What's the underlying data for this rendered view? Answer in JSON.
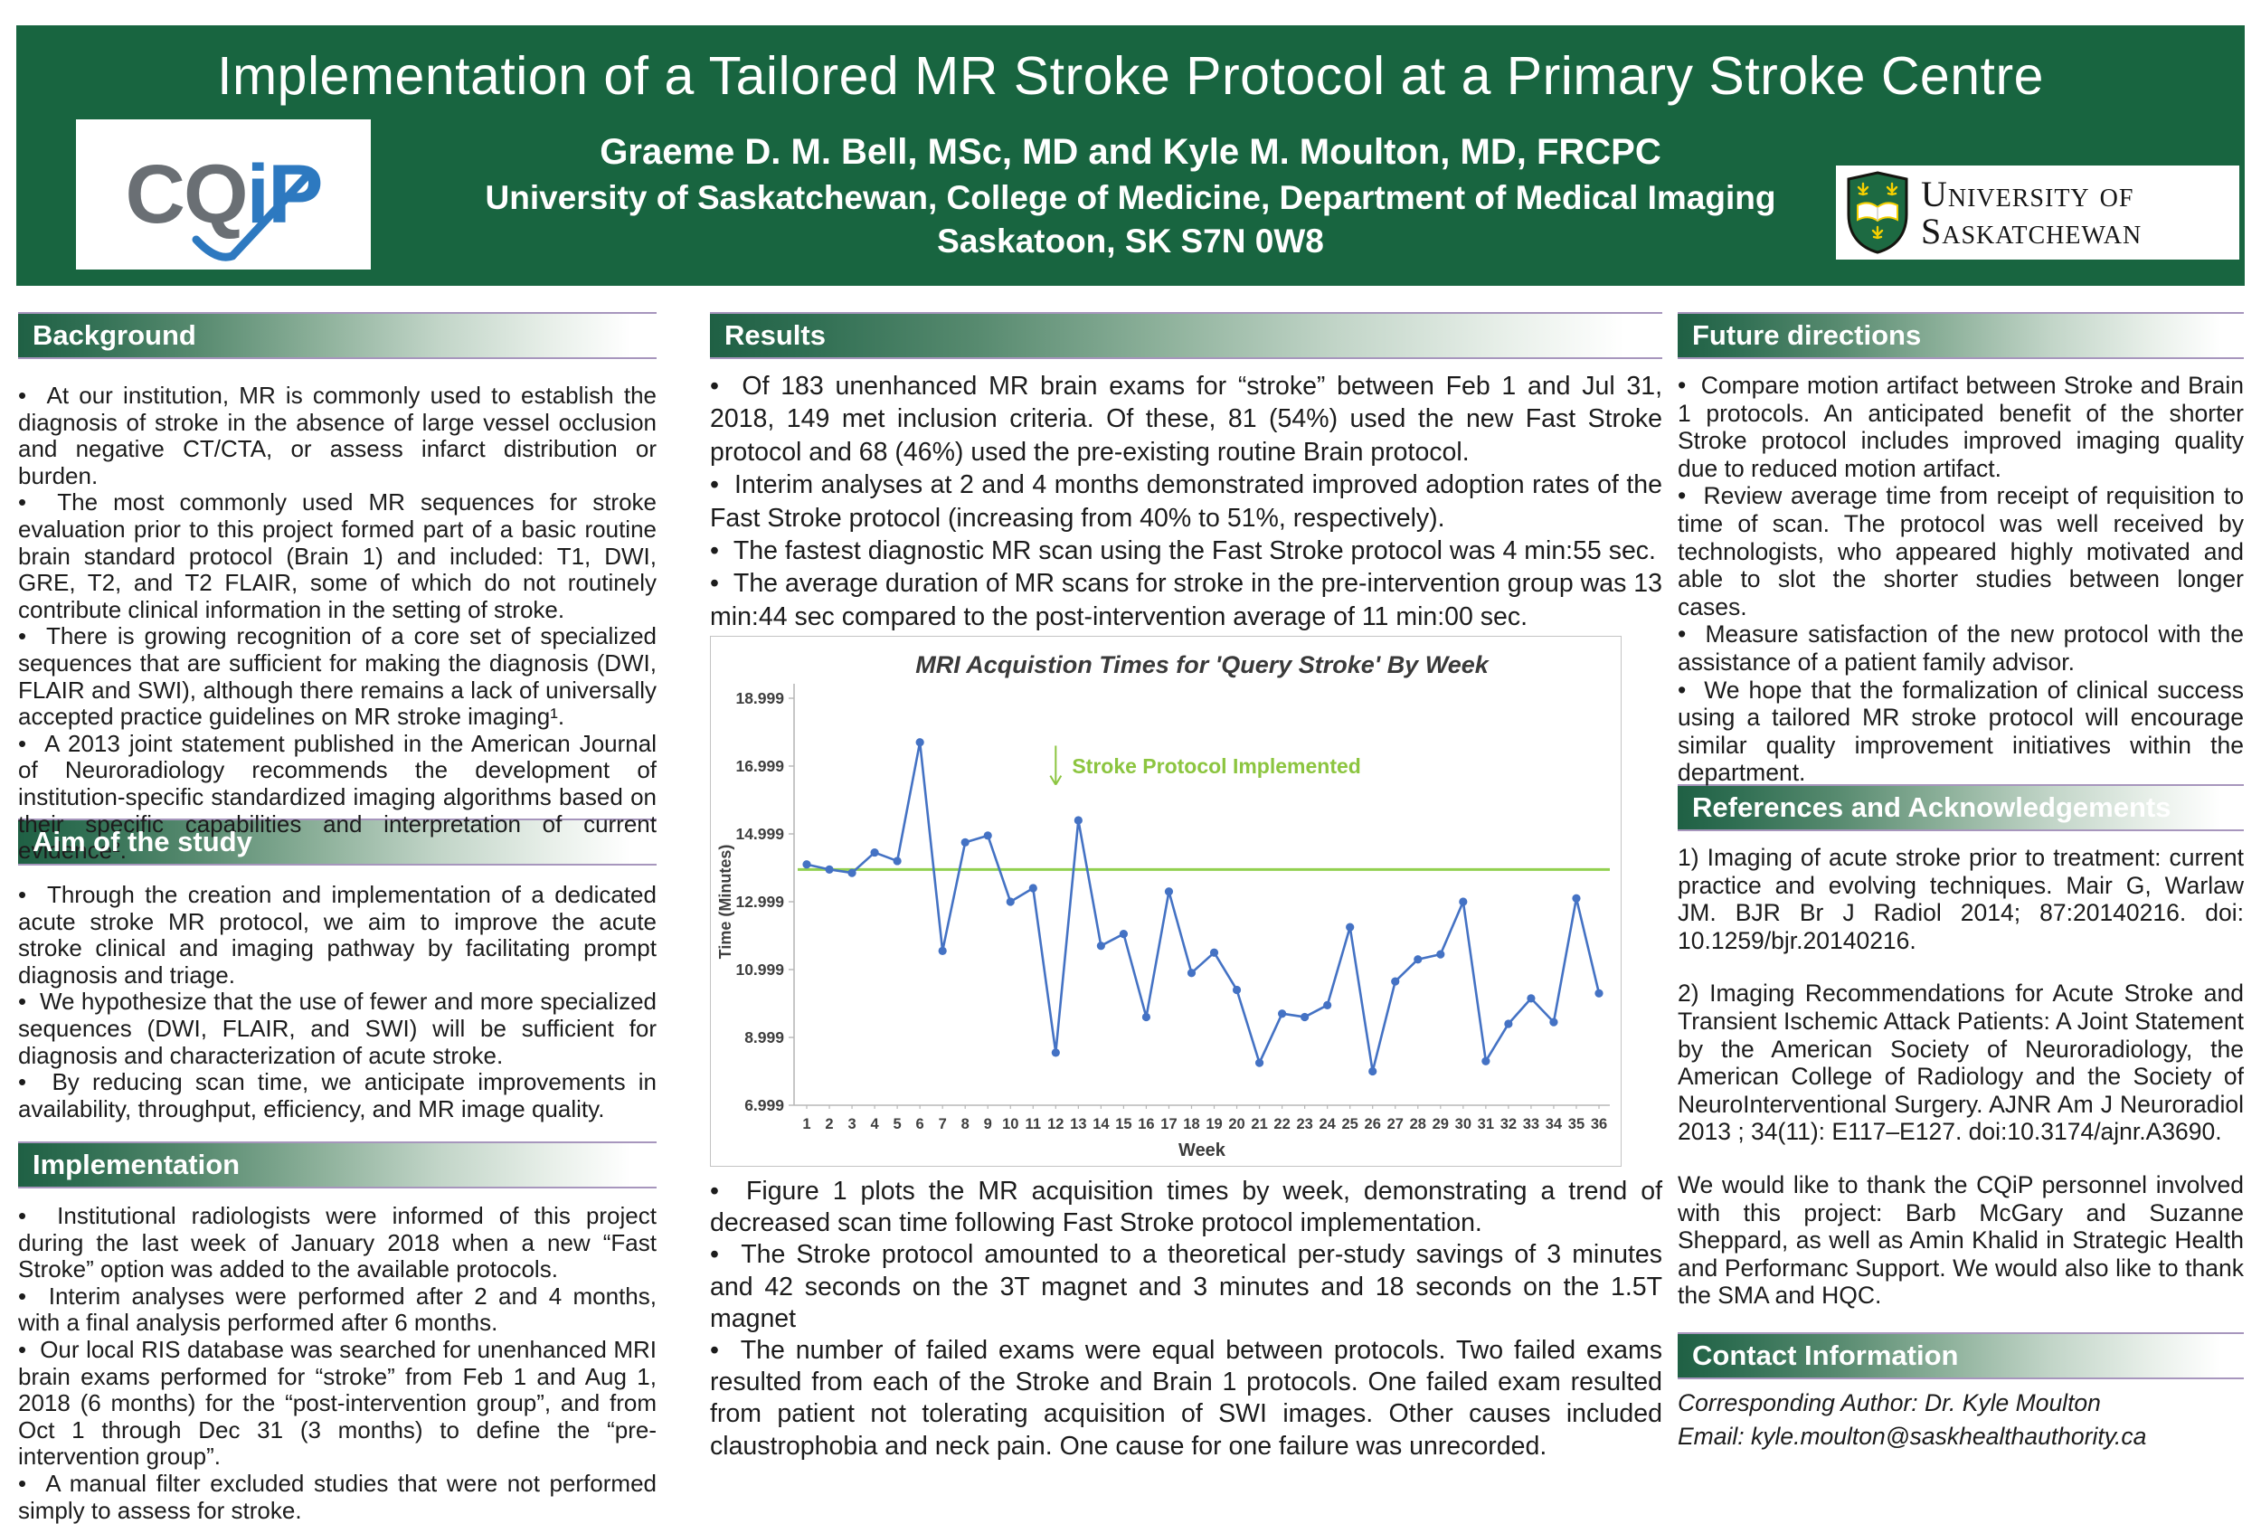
{
  "header": {
    "title": "Implementation of a Tailored MR Stroke Protocol at a Primary Stroke Centre",
    "authors": "Graeme D. M. Bell, MSc, MD and Kyle M. Moulton, MD, FRCPC",
    "affiliation": "University of Saskatchewan, College of Medicine, Department of Medical Imaging",
    "city": "Saskatoon, SK S7N 0W8",
    "cqip": {
      "gray": "CQ",
      "blue": "iP"
    },
    "uofs": {
      "line1": "University of",
      "line2": "Saskatchewan"
    }
  },
  "colors": {
    "header_green": "#186540",
    "bar_purple": "#a796bd",
    "chart_blue": "#4472c4",
    "chart_green": "#92d050",
    "annotation_green": "#8cc540"
  },
  "sections": {
    "background": {
      "title": "Background",
      "bullets": [
        "At our institution, MR is commonly used to establish the diagnosis of stroke in the absence of large vessel occlusion and negative CT/CTA, or assess infarct distribution or burden.",
        "The most commonly used MR sequences for stroke evaluation prior to this project formed part of a basic routine brain standard protocol (Brain 1) and included: T1, DWI, GRE, T2, and T2 FLAIR, some of which do not routinely contribute clinical information in the setting of stroke.",
        "There is growing recognition of a core set of specialized sequences that are sufficient for making the diagnosis (DWI, FLAIR and SWI), although there remains a lack of universally accepted practice guidelines on MR stroke imaging¹.",
        "A 2013 joint statement published in the American Journal of Neuroradiology recommends the development of institution-specific standardized imaging algorithms based on their specific capabilities and interpretation of current evidence²."
      ]
    },
    "aim": {
      "title": "Aim of the study",
      "bullets": [
        "Through the creation and implementation of a dedicated acute stroke MR protocol, we aim to improve the acute stroke clinical and imaging pathway by facilitating prompt diagnosis and triage.",
        "We hypothesize that the use of fewer and more specialized sequences (DWI, FLAIR, and SWI) will be sufficient for diagnosis and characterization of acute stroke.",
        "By reducing scan time, we anticipate improvements in availability, throughput, efficiency, and MR image quality."
      ]
    },
    "implementation": {
      "title": "Implementation",
      "bullets": [
        "Institutional radiologists were informed of this project during the last week of January 2018 when a new “Fast Stroke” option was added to the available protocols.",
        "Interim analyses were performed after 2 and 4 months, with a final analysis performed after 6 months.",
        "Our local RIS database was searched for unenhanced MRI brain exams performed for “stroke” from Feb 1 and Aug 1, 2018 (6 months) for the “post-intervention group”, and from Oct 1 through Dec 31 (3 months) to define the “pre-intervention group”.",
        "A manual filter excluded studies that were not performed simply to assess for stroke."
      ]
    },
    "results": {
      "title": "Results",
      "bullets_top": [
        "Of 183 unenhanced MR brain exams for “stroke” between Feb 1 and Jul 31, 2018, 149 met inclusion criteria. Of these, 81 (54%) used the new Fast Stroke protocol and 68 (46%) used the pre-existing routine Brain protocol.",
        "Interim analyses at 2 and 4 months demonstrated improved adoption rates of the Fast Stroke protocol (increasing from 40% to 51%, respectively).",
        "The fastest diagnostic MR scan using the Fast Stroke protocol was 4 min:55 sec.",
        "The average duration of MR scans for stroke in the pre-intervention group was 13 min:44 sec compared to the post-intervention average of 11 min:00 sec."
      ],
      "bullets_bottom": [
        "Figure 1 plots the MR acquisition times by week, demonstrating a trend of decreased scan time following Fast Stroke protocol implementation.",
        "The Stroke protocol amounted to a theoretical per-study savings of 3 minutes and 42 seconds on the 3T magnet and 3 minutes and 18 seconds on the 1.5T magnet",
        "The number of failed exams were equal between protocols.  Two failed exams resulted from each of the Stroke and Brain 1 protocols.  One failed exam resulted from patient not tolerating acquisition of SWI images.  Other causes included claustrophobia and neck pain.  One cause for one failure was unrecorded."
      ]
    },
    "future": {
      "title": "Future directions",
      "bullets": [
        "Compare motion artifact between Stroke and Brain 1 protocols.  An anticipated benefit of the shorter Stroke protocol includes improved imaging quality due to reduced motion artifact.",
        "Review average time from receipt of requisition to time of scan.  The protocol was well received by technologists, who appeared highly motivated and able to slot the shorter studies between longer cases.",
        "Measure satisfaction of the new protocol with the assistance of a patient family advisor.",
        "We hope that the formalization of clinical success using a tailored MR stroke protocol will encourage similar quality improvement initiatives within the department."
      ]
    },
    "references": {
      "title": "References and Acknowledgements",
      "items": [
        "1)  Imaging of acute stroke prior to treatment: current practice and evolving techniques.  Mair G, Warlaw JM. BJR Br J Radiol 2014; 87:20140216. doi: 10.1259/bjr.20140216.",
        "2)  Imaging Recommendations for Acute Stroke and Transient Ischemic Attack Patients: A Joint Statement by the American Society of Neuroradiology, the American College of Radiology and the Society of NeuroInterventional Surgery.  AJNR Am J Neuroradiol 2013 ; 34(11): E117–E127. doi:10.3174/ajnr.A3690.",
        "We would like to thank the CQiP personnel involved with this project: Barb McGary and Suzanne Sheppard, as well as Amin Khalid in Strategic Health and Performanc Support.  We would also like to thank the SMA and HQC."
      ]
    },
    "contact": {
      "title": "Contact Information",
      "lines": [
        "Corresponding Author: Dr. Kyle Moulton",
        "Email: kyle.moulton@saskhealthauthority.ca"
      ]
    }
  },
  "chart_data": {
    "type": "line",
    "title": "MRI Acquistion Times for 'Query Stroke' By Week",
    "xlabel": "Week",
    "ylabel": "Time (Minutes)",
    "x": [
      1,
      2,
      3,
      4,
      5,
      6,
      7,
      8,
      9,
      10,
      11,
      12,
      13,
      14,
      15,
      16,
      17,
      18,
      19,
      20,
      21,
      22,
      23,
      24,
      25,
      26,
      27,
      28,
      29,
      30,
      31,
      32,
      33,
      34,
      35,
      36
    ],
    "values": [
      14.1,
      13.95,
      13.85,
      14.45,
      14.2,
      17.7,
      11.55,
      14.75,
      14.95,
      13.0,
      13.4,
      8.55,
      15.4,
      11.7,
      12.05,
      9.6,
      13.3,
      10.9,
      11.5,
      10.4,
      8.25,
      9.7,
      9.6,
      9.95,
      12.25,
      8.0,
      10.65,
      11.3,
      11.45,
      13.0,
      8.3,
      9.4,
      10.15,
      9.45,
      13.1,
      10.3
    ],
    "yticks": [
      6.999,
      8.999,
      10.999,
      12.999,
      14.999,
      16.999,
      18.999
    ],
    "ylim": [
      6.999,
      18.999
    ],
    "grid": false,
    "line_color": "#4472c4",
    "reference_line": {
      "value": 13.95,
      "color": "#92d050"
    },
    "annotation": {
      "text": "Stroke Protocol Implemented",
      "week": 12,
      "arrow_from": 17.6,
      "arrow_to": 16.45,
      "color": "#8cc540"
    }
  }
}
